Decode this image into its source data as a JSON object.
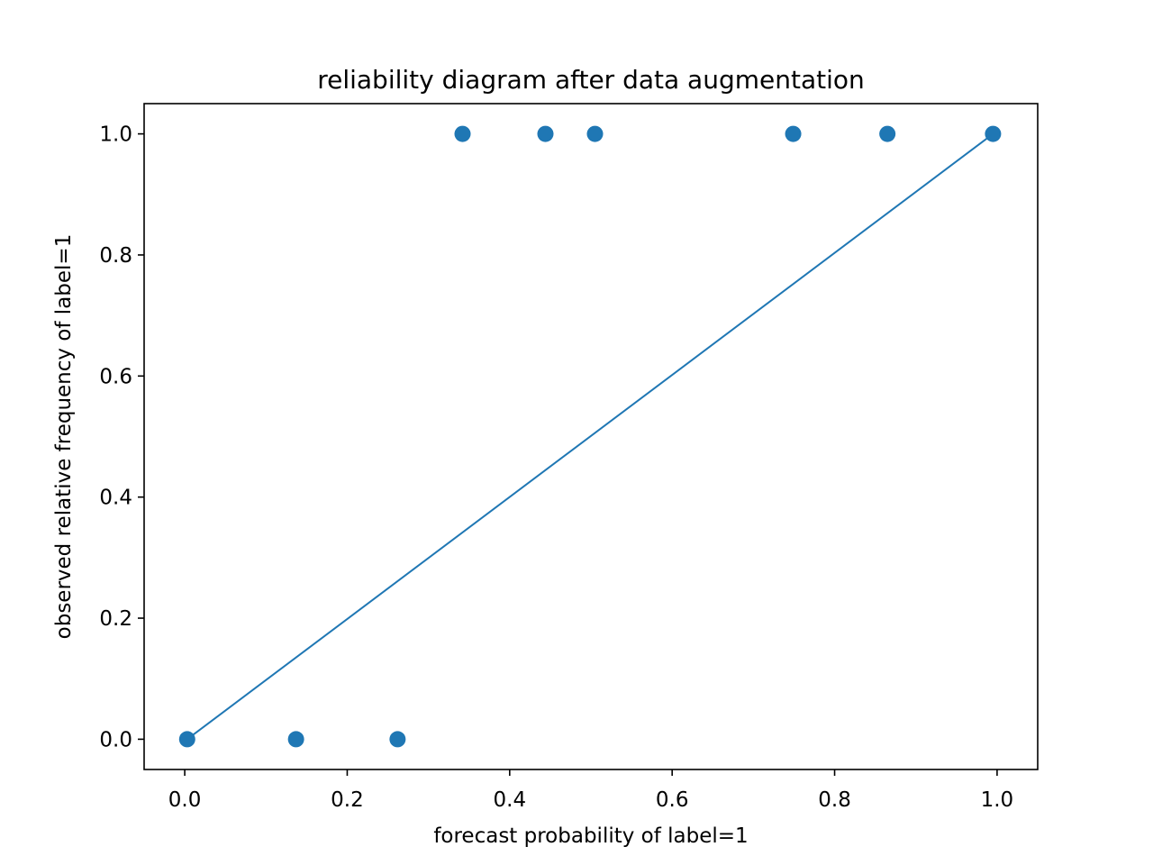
{
  "chart_data": {
    "type": "scatter",
    "title": "reliability diagram after data augmentation",
    "xlabel": "forecast probability of label=1",
    "ylabel": "observed relative frequency of label=1",
    "xlim": [
      -0.05,
      1.05
    ],
    "ylim": [
      -0.05,
      1.05
    ],
    "xticks": [
      0.0,
      0.2,
      0.4,
      0.6,
      0.8,
      1.0
    ],
    "yticks": [
      0.0,
      0.2,
      0.4,
      0.6,
      0.8,
      1.0
    ],
    "xtick_labels": [
      "0.0",
      "0.2",
      "0.4",
      "0.6",
      "0.8",
      "1.0"
    ],
    "ytick_labels": [
      "0.0",
      "0.2",
      "0.4",
      "0.6",
      "0.8",
      "1.0"
    ],
    "grid": false,
    "series": [
      {
        "kind": "scatter",
        "color": "#1f77b4",
        "x": [
          0.003,
          0.137,
          0.262,
          0.342,
          0.444,
          0.505,
          0.749,
          0.865,
          0.995
        ],
        "y": [
          0.0,
          0.0,
          0.0,
          1.0,
          1.0,
          1.0,
          1.0,
          1.0,
          1.0
        ]
      },
      {
        "kind": "line",
        "color": "#1f77b4",
        "x": [
          0.003,
          0.995
        ],
        "y": [
          0.0,
          1.0
        ]
      }
    ]
  }
}
